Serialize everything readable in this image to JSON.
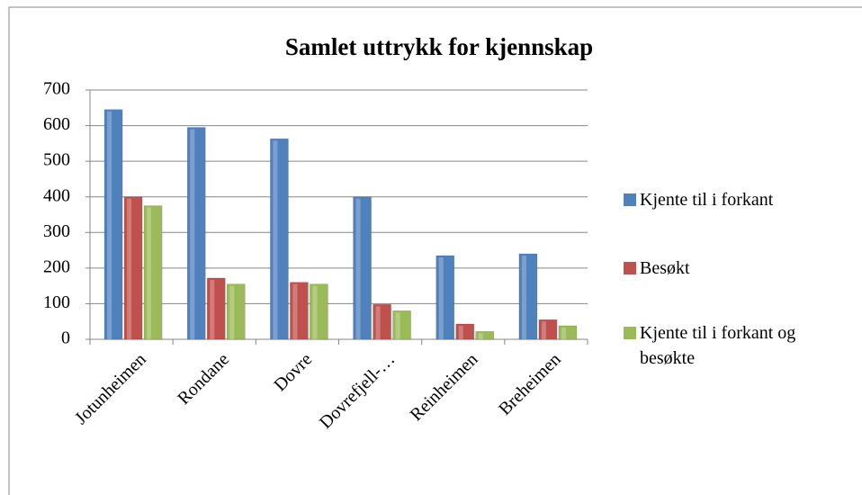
{
  "chart_data": {
    "type": "bar",
    "title": "Samlet uttrykk for kjennskap",
    "categories": [
      "Jotunheimen",
      "Rondane",
      "Dovre",
      "Dovrefjell-…",
      "Reinheimen",
      "Breheimen"
    ],
    "series": [
      {
        "name": "Kjente til i forkant",
        "color": "#4f81bd",
        "values": [
          645,
          595,
          563,
          400,
          235,
          240
        ]
      },
      {
        "name": "Besøkt",
        "color": "#c0504d",
        "values": [
          400,
          172,
          160,
          98,
          43,
          55
        ]
      },
      {
        "name": "Kjente til i forkant og besøkte",
        "color": "#9bbb59",
        "values": [
          375,
          155,
          155,
          80,
          22,
          38
        ]
      }
    ],
    "ylim": [
      0,
      700
    ],
    "yticks": [
      0,
      100,
      200,
      300,
      400,
      500,
      600,
      700
    ],
    "grid": true,
    "legend": "right"
  }
}
